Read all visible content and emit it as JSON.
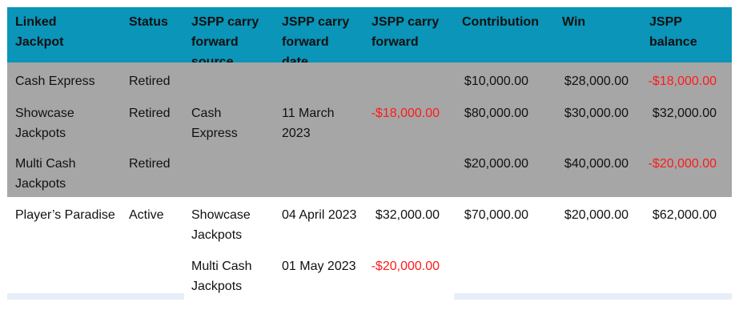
{
  "columns": [
    "Linked\nJackpot",
    "Status",
    "JSPP carry\nforward\nsource",
    "JSPP carry\nforward\ndate",
    "JSPP carry\nforward",
    "Contribution",
    "Win",
    "JSPP\nbalance"
  ],
  "rows": [
    {
      "jackpot": "Cash Express",
      "status": "Retired",
      "cf_source": "",
      "cf_date": "",
      "cf_amount": "",
      "contribution": "$10,000.00",
      "win": "$28,000.00",
      "balance": "-$18,000.00"
    },
    {
      "jackpot": "Showcase\nJackpots",
      "status": "Retired",
      "cf_source": "Cash\nExpress",
      "cf_date": "11 March\n2023",
      "cf_amount": "-$18,000.00",
      "contribution": "$80,000.00",
      "win": "$30,000.00",
      "balance": "$32,000.00"
    },
    {
      "jackpot": "Multi Cash\nJackpots",
      "status": "Retired",
      "cf_source": "",
      "cf_date": "",
      "cf_amount": "",
      "contribution": "$20,000.00",
      "win": "$40,000.00",
      "balance": "-$20,000.00"
    },
    {
      "jackpot": "Player’s Paradise",
      "status": "Active",
      "cf_source": "Showcase\nJackpots",
      "cf_date": "04 April 2023",
      "cf_amount": "$32,000.00",
      "contribution": "$70,000.00",
      "win": "$20,000.00",
      "balance": "$62,000.00"
    },
    {
      "jackpot": "",
      "status": "",
      "cf_source": "Multi Cash\nJackpots",
      "cf_date": "01 May 2023",
      "cf_amount": "-$20,000.00",
      "contribution": "",
      "win": "",
      "balance": ""
    }
  ],
  "colors": {
    "header_bg": "#0a95b9",
    "retired_bg": "#a6a6a6",
    "negative": "#ff1a1a"
  }
}
